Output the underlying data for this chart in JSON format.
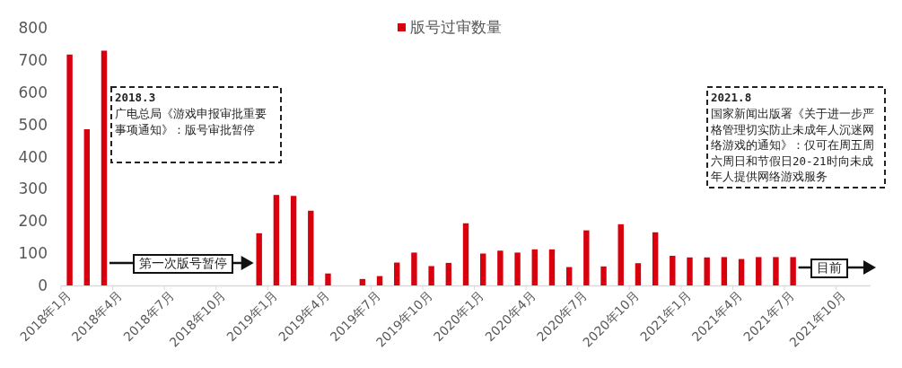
{
  "chart_data": {
    "type": "bar",
    "categories": [
      "2018年1月",
      null,
      null,
      "2018年4月",
      null,
      null,
      "2018年7月",
      null,
      null,
      "2018年10月",
      null,
      null,
      "2019年1月",
      null,
      null,
      "2019年4月",
      null,
      null,
      "2019年7月",
      null,
      null,
      "2019年10月",
      null,
      null,
      "2020年1月",
      null,
      null,
      "2020年4月",
      null,
      null,
      "2020年7月",
      null,
      null,
      "2020年10月",
      null,
      null,
      "2021年1月",
      null,
      null,
      "2021年4月",
      null,
      null,
      "2021年7月",
      null,
      null,
      "2021年10月",
      null
    ],
    "series": [
      {
        "name": "版号过审数量",
        "color": "#d9000d",
        "values": [
          717,
          485,
          729,
          null,
          null,
          null,
          null,
          null,
          null,
          null,
          null,
          162,
          281,
          278,
          232,
          37,
          null,
          20,
          29,
          71,
          102,
          60,
          70,
          193,
          99,
          108,
          102,
          112,
          112,
          57,
          171,
          59,
          190,
          69,
          165,
          92,
          87,
          87,
          88,
          82,
          88,
          88,
          88,
          null,
          null,
          null,
          null
        ]
      }
    ],
    "ylim": [
      0,
      800
    ],
    "yticks": [
      0,
      100,
      200,
      300,
      400,
      500,
      600,
      700,
      800
    ],
    "legend": "top",
    "annotations": [
      "2018.3",
      "广电总局《游戏申报审批重要事项通知》：版号审批暂停",
      "第一次版号暂停",
      "2021.8",
      "国家新闻出版署《关于进一步严格管理切实防止未成年人沉迷网络游戏的通知》：仅可在周五周六周日和节假日20-21时向未成年人提供网络游戏服务",
      "目前"
    ]
  }
}
